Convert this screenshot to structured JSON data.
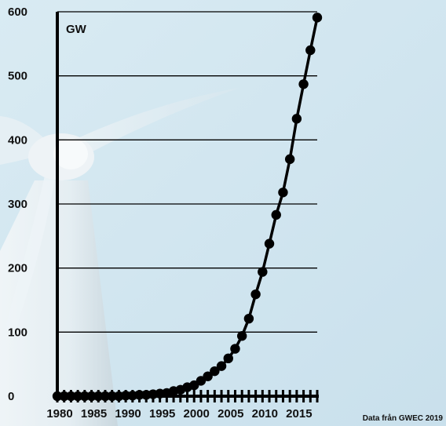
{
  "chart_data": {
    "type": "line",
    "unit_label": "GW",
    "x": [
      1980,
      1981,
      1982,
      1983,
      1984,
      1985,
      1986,
      1987,
      1988,
      1989,
      1990,
      1991,
      1992,
      1993,
      1994,
      1995,
      1996,
      1997,
      1998,
      1999,
      2000,
      2001,
      2002,
      2003,
      2004,
      2005,
      2006,
      2007,
      2008,
      2009,
      2010,
      2011,
      2012,
      2013,
      2014,
      2015,
      2016,
      2017,
      2018
    ],
    "values": [
      0,
      0,
      0,
      0,
      0,
      0,
      0,
      0,
      0,
      0,
      1,
      1,
      2,
      2,
      3,
      4,
      5,
      8,
      10,
      14,
      17,
      24,
      31,
      39,
      47,
      59,
      74,
      94,
      121,
      159,
      194,
      238,
      283,
      318,
      370,
      433,
      487,
      540,
      591
    ],
    "x_ticks": [
      1980,
      1985,
      1990,
      1995,
      2000,
      2005,
      2010,
      2015
    ],
    "x_tick_labels": [
      "1980",
      "1985",
      "1990",
      "1995",
      "2000",
      "2005",
      "2010",
      "2015"
    ],
    "y_ticks": [
      0,
      100,
      200,
      300,
      400,
      500,
      600
    ],
    "y_tick_labels": [
      "0",
      "100",
      "200",
      "300",
      "400",
      "500",
      "600"
    ],
    "xlim": [
      1980,
      2018
    ],
    "ylim": [
      0,
      600
    ],
    "grid": true,
    "line_color": "#000000",
    "background_color": "#d6e8f1"
  },
  "source_note": "Data från GWEC 2019"
}
